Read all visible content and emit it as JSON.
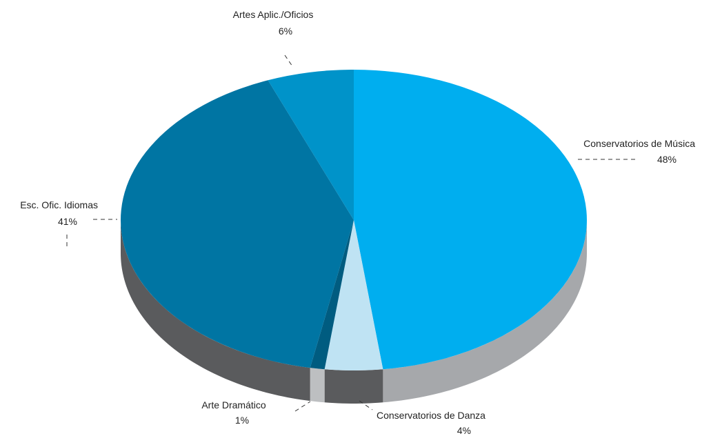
{
  "chart_data": {
    "type": "pie",
    "title": "",
    "slices": [
      {
        "label": "Conservatorios de Música",
        "value": 48,
        "value_label": "48%",
        "color": "#00AEEF",
        "side_color": "#A6A8AB"
      },
      {
        "label": "Conservatorios de Danza",
        "value": 4,
        "value_label": "4%",
        "color": "#BFE3F3",
        "side_color": "#5A5B5D"
      },
      {
        "label": "Arte Dramático",
        "value": 1,
        "value_label": "1%",
        "color": "#005C80",
        "side_color": "#BDBFC1"
      },
      {
        "label": "Esc. Ofic. Idiomas",
        "value": 41,
        "value_label": "41%",
        "color": "#0075A3",
        "side_color": "#5A5B5D"
      },
      {
        "label": "Artes Aplic./Oficios",
        "value": 6,
        "value_label": "6%",
        "color": "#0093C9",
        "side_color": "#5A5B5D"
      }
    ],
    "style": "3d-pie",
    "legend": "none"
  }
}
